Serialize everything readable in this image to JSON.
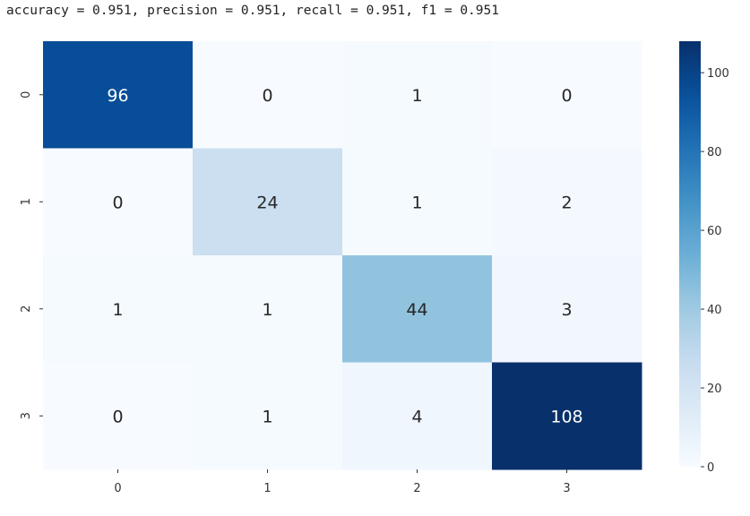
{
  "title": "accuracy = 0.951, precision = 0.951, recall = 0.951, f1 = 0.951",
  "chart_data": {
    "type": "heatmap",
    "colormap": "Blues",
    "x_categories": [
      "0",
      "1",
      "2",
      "3"
    ],
    "y_categories": [
      "0",
      "1",
      "2",
      "3"
    ],
    "values": [
      [
        96,
        0,
        1,
        0
      ],
      [
        0,
        24,
        1,
        2
      ],
      [
        1,
        1,
        44,
        3
      ],
      [
        0,
        1,
        4,
        108
      ]
    ],
    "color_range": [
      0,
      108
    ],
    "colorbar_ticks": [
      "0",
      "20",
      "40",
      "60",
      "80",
      "100"
    ],
    "colorbar_tick_values": [
      0,
      20,
      40,
      60,
      80,
      100
    ],
    "xlabel": "",
    "ylabel": "",
    "grid": false
  }
}
